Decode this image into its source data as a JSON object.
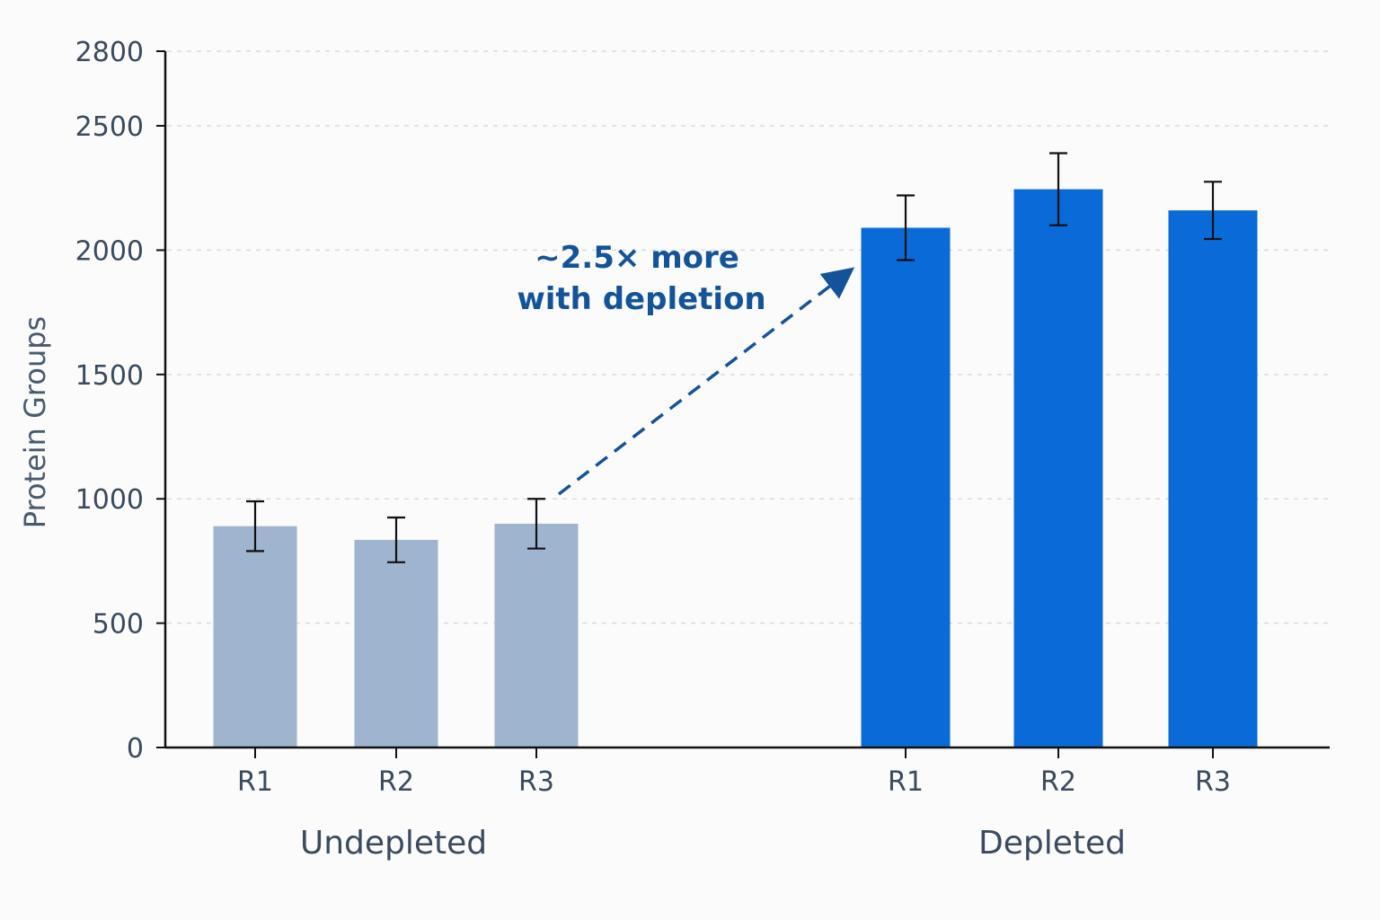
{
  "chart_data": {
    "type": "bar",
    "ylabel": "Protein Groups",
    "ylim": [
      0,
      2800
    ],
    "yticks": [
      0,
      500,
      1000,
      1500,
      2000,
      2500,
      2800
    ],
    "grid": true,
    "groups": [
      {
        "name": "Undepleted",
        "color": "#9fb5cf",
        "categories": [
          "R1",
          "R2",
          "R3"
        ],
        "values": [
          890,
          835,
          900
        ],
        "errors": [
          100,
          90,
          100
        ]
      },
      {
        "name": "Depleted",
        "color": "#0a6bd8",
        "categories": [
          "R1",
          "R2",
          "R3"
        ],
        "values": [
          2090,
          2245,
          2160
        ],
        "errors": [
          130,
          145,
          115
        ]
      }
    ],
    "annotation": {
      "lines": [
        "~2.5× more",
        "with depletion"
      ],
      "color": "#12539a"
    }
  }
}
